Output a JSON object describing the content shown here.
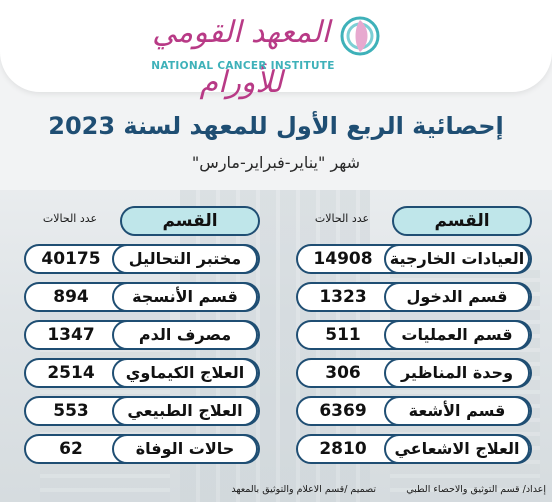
{
  "header": {
    "logo_arabic": "المعهد القومي للأورام",
    "logo_english": "NATIONAL CANCER INSTITUTE"
  },
  "title": "إحصائية الربع الأول للمعهد لسنة 2023",
  "subtitle": "شهر \"يناير-فبراير-مارس\"",
  "columns": [
    {
      "section_label": "القسم",
      "count_label": "عدد الحالات",
      "rows": [
        {
          "name": "العيادات الخارجية",
          "count": "14908"
        },
        {
          "name": "قسم الدخول",
          "count": "1323"
        },
        {
          "name": "قسم العمليات",
          "count": "511"
        },
        {
          "name": "وحدة المناظير",
          "count": "306"
        },
        {
          "name": "قسم الأشعة",
          "count": "6369"
        },
        {
          "name": "العلاج الاشعاعي",
          "count": "2810"
        }
      ]
    },
    {
      "section_label": "القسم",
      "count_label": "عدد الحالات",
      "rows": [
        {
          "name": "مختبر التحاليل",
          "count": "40175"
        },
        {
          "name": "قسم الأنسجة",
          "count": "894"
        },
        {
          "name": "مصرف الدم",
          "count": "1347"
        },
        {
          "name": "العلاج الكيماوي",
          "count": "2514"
        },
        {
          "name": "العلاج الطبيعي",
          "count": "553"
        },
        {
          "name": "حالات الوفاة",
          "count": "62"
        }
      ]
    }
  ],
  "footer": {
    "prepared_by": "إعداد/ قسم التوثيق والاحصاء الطبي",
    "designed_by": "تصميم /قسم الاعلام والتوثيق بالمعهد"
  },
  "colors": {
    "primary": "#1f4e73",
    "header_fill": "#bfe6ea",
    "logo_pink": "#b83a86",
    "logo_teal": "#3eb1b9"
  }
}
